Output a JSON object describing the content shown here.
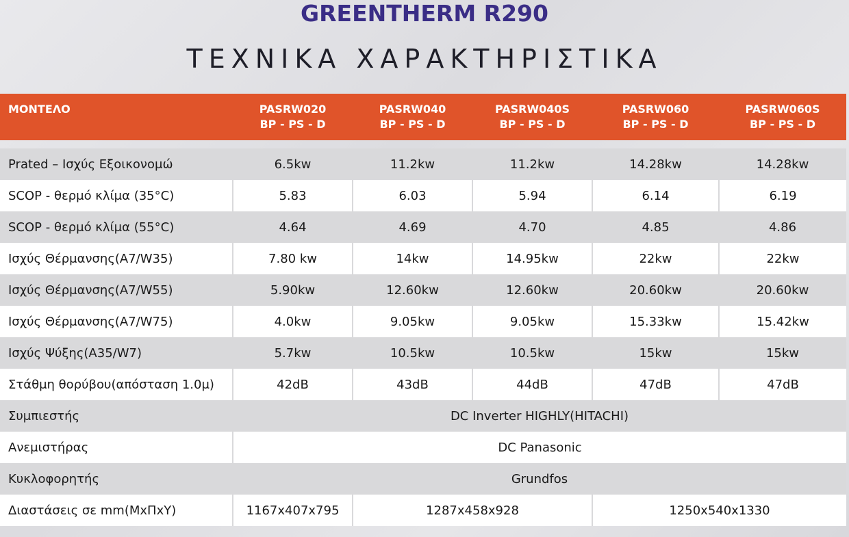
{
  "header": {
    "title": "GREENTHERM R290",
    "subtitle": "ΤΕΧΝΙΚΑ ΧΑΡΑΚΤΗΡΙΣΤΙΚΑ"
  },
  "table": {
    "corner": "ΜΟΝΤΕΛΟ",
    "columns": [
      {
        "model": "PASRW020",
        "variant": "BP - PS - D"
      },
      {
        "model": "PASRW040",
        "variant": "BP - PS - D"
      },
      {
        "model": "PASRW040S",
        "variant": "BP - PS - D"
      },
      {
        "model": "PASRW060",
        "variant": "BP - PS - D"
      },
      {
        "model": "PASRW060S",
        "variant": "BP - PS - D"
      }
    ],
    "rows": [
      {
        "label": "Prated – Ισχύς Εξοικονομώ",
        "values": [
          "6.5kw",
          "11.2kw",
          "11.2kw",
          "14.28kw",
          "14.28kw"
        ]
      },
      {
        "label": "SCOP - θερμό κλίμα (35°C)",
        "values": [
          "5.83",
          "6.03",
          "5.94",
          "6.14",
          "6.19"
        ]
      },
      {
        "label": "SCOP - θερμό κλίμα (55°C)",
        "values": [
          "4.64",
          "4.69",
          "4.70",
          "4.85",
          "4.86"
        ]
      },
      {
        "label": "Ισχύς Θέρμανσης(A7/W35)",
        "values": [
          "7.80 kw",
          "14kw",
          "14.95kw",
          "22kw",
          "22kw"
        ]
      },
      {
        "label": "Ισχύς Θέρμανσης(A7/W55)",
        "values": [
          "5.90kw",
          "12.60kw",
          "12.60kw",
          "20.60kw",
          "20.60kw"
        ]
      },
      {
        "label": "Ισχύς Θέρμανσης(A7/W75)",
        "values": [
          "4.0kw",
          "9.05kw",
          "9.05kw",
          "15.33kw",
          "15.42kw"
        ]
      },
      {
        "label": "Ισχύς Ψύξης(A35/W7)",
        "values": [
          "5.7kw",
          "10.5kw",
          "10.5kw",
          "15kw",
          "15kw"
        ]
      },
      {
        "label": "Στάθμη θορύβου(απόσταση 1.0μ)",
        "values": [
          "42dB",
          "43dB",
          "44dB",
          "47dB",
          "47dB"
        ]
      },
      {
        "label": "Συμπιεστής",
        "values": [
          "DC Inverter HIGHLY(HITACHI)"
        ]
      },
      {
        "label": "Ανεμιστήρας",
        "values": [
          "DC Panasonic"
        ]
      },
      {
        "label": "Κυκλοφορητής",
        "values": [
          "Grundfos"
        ]
      },
      {
        "label": "Διαστάσεις σε mm(ΜxΠxΥ)",
        "values": [
          "1167x407x795",
          "1287x458x928",
          "1250x540x1330"
        ]
      }
    ]
  }
}
